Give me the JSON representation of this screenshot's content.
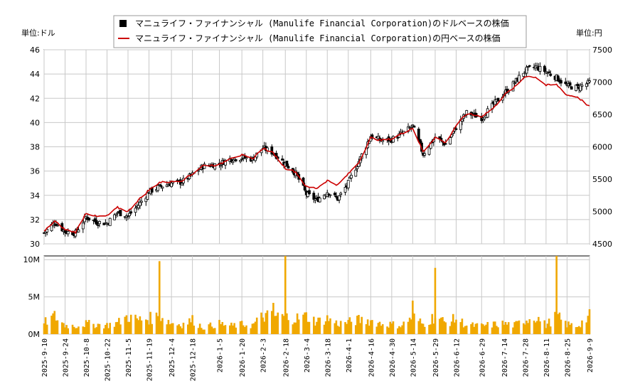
{
  "legend": {
    "usd_label": "マニュライフ・ファイナンシャル (Manulife Financial Corporation)のドルベースの株価",
    "jpy_label": "マニュライフ・ファイナンシャル (Manulife Financial Corporation)の円ベースの株価"
  },
  "units": {
    "left": "単位:ドル",
    "right": "単位:円"
  },
  "colors": {
    "candle": "#000000",
    "jpy_line": "#cc0000",
    "volume": "#f0a800",
    "grid": "#c8c8c8"
  },
  "chart_data": [
    {
      "type": "candlestick",
      "name": "price",
      "series_names": [
        "マニュライフ・ファイナンシャル (Manulife Financial Corporation)のドルベースの株価",
        "マニュライフ・ファイナンシャル (Manulife Financial Corporation)の円ベースの株価"
      ],
      "x_range": [
        "2025-09-10",
        "2026-09-09"
      ],
      "ylim_left": [
        30,
        46
      ],
      "ylim_right": [
        4500,
        7500
      ],
      "yticks_left": [
        "30",
        "32",
        "34",
        "36",
        "38",
        "40",
        "42",
        "44",
        "46"
      ],
      "yticks_right": [
        "4500",
        "5000",
        "5500",
        "6000",
        "6500",
        "7000",
        "7500"
      ],
      "x_ticks": [
        "2025-9-10",
        "2025-9-24",
        "2025-10-8",
        "2025-10-22",
        "2025-11-5",
        "2025-11-19",
        "2025-12-4",
        "2025-12-18",
        "2026-1-5",
        "2026-1-20",
        "2026-2-3",
        "2026-2-18",
        "2026-3-4",
        "2026-3-18",
        "2026-4-1",
        "2026-4-16",
        "2026-4-30",
        "2026-5-14",
        "2026-5-29",
        "2026-6-12",
        "2026-6-29",
        "2026-7-14",
        "2026-7-28",
        "2026-8-11",
        "2026-8-25",
        "2026-9-9"
      ],
      "grid": true,
      "legend_position": "top-center",
      "usd_close": [
        [
          "2025-09-10",
          30.9
        ],
        [
          "2025-09-17",
          31.8
        ],
        [
          "2025-09-24",
          31.0
        ],
        [
          "2025-10-01",
          30.9
        ],
        [
          "2025-10-08",
          32.2
        ],
        [
          "2025-10-15",
          31.8
        ],
        [
          "2025-10-22",
          31.7
        ],
        [
          "2025-10-29",
          32.6
        ],
        [
          "2025-11-05",
          32.3
        ],
        [
          "2025-11-12",
          33.2
        ],
        [
          "2025-11-19",
          34.3
        ],
        [
          "2025-11-26",
          34.7
        ],
        [
          "2025-12-04",
          35.0
        ],
        [
          "2025-12-11",
          35.1
        ],
        [
          "2025-12-18",
          35.7
        ],
        [
          "2025-12-25",
          36.4
        ],
        [
          "2026-01-05",
          36.6
        ],
        [
          "2026-01-12",
          37.0
        ],
        [
          "2026-01-20",
          37.1
        ],
        [
          "2026-01-27",
          37.0
        ],
        [
          "2026-02-03",
          37.9
        ],
        [
          "2026-02-10",
          37.5
        ],
        [
          "2026-02-18",
          36.6
        ],
        [
          "2026-02-25",
          35.8
        ],
        [
          "2026-03-04",
          34.1
        ],
        [
          "2026-03-11",
          33.6
        ],
        [
          "2026-03-18",
          34.3
        ],
        [
          "2026-03-25",
          33.7
        ],
        [
          "2026-04-01",
          35.0
        ],
        [
          "2026-04-08",
          36.8
        ],
        [
          "2026-04-16",
          38.9
        ],
        [
          "2026-04-23",
          38.5
        ],
        [
          "2026-04-30",
          38.6
        ],
        [
          "2026-05-07",
          39.1
        ],
        [
          "2026-05-14",
          39.7
        ],
        [
          "2026-05-21",
          37.4
        ],
        [
          "2026-05-29",
          38.8
        ],
        [
          "2026-06-05",
          38.2
        ],
        [
          "2026-06-12",
          39.6
        ],
        [
          "2026-06-19",
          40.8
        ],
        [
          "2026-06-29",
          40.4
        ],
        [
          "2026-07-07",
          41.5
        ],
        [
          "2026-07-14",
          42.4
        ],
        [
          "2026-07-21",
          43.3
        ],
        [
          "2026-07-28",
          44.3
        ],
        [
          "2026-08-04",
          44.6
        ],
        [
          "2026-08-11",
          44.2
        ],
        [
          "2026-08-18",
          43.7
        ],
        [
          "2026-08-25",
          43.0
        ],
        [
          "2026-09-01",
          42.9
        ],
        [
          "2026-09-09",
          43.3
        ]
      ],
      "jpy_close": [
        [
          "2025-09-10",
          4690
        ],
        [
          "2025-09-17",
          4850
        ],
        [
          "2025-09-24",
          4720
        ],
        [
          "2025-10-01",
          4680
        ],
        [
          "2025-10-08",
          4980
        ],
        [
          "2025-10-15",
          4920
        ],
        [
          "2025-10-22",
          4930
        ],
        [
          "2025-10-29",
          5060
        ],
        [
          "2025-11-05",
          5000
        ],
        [
          "2025-11-12",
          5180
        ],
        [
          "2025-11-19",
          5330
        ],
        [
          "2025-11-26",
          5450
        ],
        [
          "2025-12-04",
          5460
        ],
        [
          "2025-12-11",
          5480
        ],
        [
          "2025-12-18",
          5580
        ],
        [
          "2025-12-25",
          5710
        ],
        [
          "2026-01-05",
          5720
        ],
        [
          "2026-01-12",
          5830
        ],
        [
          "2026-01-20",
          5870
        ],
        [
          "2026-01-27",
          5810
        ],
        [
          "2026-02-03",
          5980
        ],
        [
          "2026-02-10",
          5900
        ],
        [
          "2026-02-18",
          5670
        ],
        [
          "2026-02-25",
          5610
        ],
        [
          "2026-03-04",
          5380
        ],
        [
          "2026-03-11",
          5360
        ],
        [
          "2026-03-18",
          5480
        ],
        [
          "2026-03-25",
          5410
        ],
        [
          "2026-04-01",
          5580
        ],
        [
          "2026-04-08",
          5760
        ],
        [
          "2026-04-16",
          6140
        ],
        [
          "2026-04-23",
          6100
        ],
        [
          "2026-04-30",
          6120
        ],
        [
          "2026-05-07",
          6210
        ],
        [
          "2026-05-14",
          6290
        ],
        [
          "2026-05-21",
          5920
        ],
        [
          "2026-05-29",
          6150
        ],
        [
          "2026-06-05",
          6060
        ],
        [
          "2026-06-12",
          6330
        ],
        [
          "2026-06-19",
          6510
        ],
        [
          "2026-06-29",
          6470
        ],
        [
          "2026-07-07",
          6600
        ],
        [
          "2026-07-14",
          6800
        ],
        [
          "2026-07-21",
          6920
        ],
        [
          "2026-07-28",
          7090
        ],
        [
          "2026-08-04",
          7080
        ],
        [
          "2026-08-11",
          6950
        ],
        [
          "2026-08-18",
          6960
        ],
        [
          "2026-08-25",
          6800
        ],
        [
          "2026-09-01",
          6770
        ],
        [
          "2026-09-09",
          6620
        ]
      ]
    },
    {
      "type": "bar",
      "name": "volume",
      "ylim": [
        0,
        10.5
      ],
      "yticks": [
        "0M",
        "5M",
        "10M"
      ],
      "volume_millions": [
        [
          "2025-09-10",
          1.5
        ],
        [
          "2025-09-17",
          2.6
        ],
        [
          "2025-09-24",
          1.2
        ],
        [
          "2025-10-01",
          1.1
        ],
        [
          "2025-10-08",
          1.4
        ],
        [
          "2025-10-15",
          1.3
        ],
        [
          "2025-10-22",
          1.2
        ],
        [
          "2025-10-29",
          1.5
        ],
        [
          "2025-11-05",
          2.7
        ],
        [
          "2025-11-12",
          1.9
        ],
        [
          "2025-11-19",
          2.1
        ],
        [
          "2025-11-26",
          9.8
        ],
        [
          "2025-12-04",
          1.5
        ],
        [
          "2025-12-11",
          1.3
        ],
        [
          "2025-12-18",
          1.9
        ],
        [
          "2025-12-25",
          0.9
        ],
        [
          "2026-01-05",
          1.4
        ],
        [
          "2026-01-12",
          1.1
        ],
        [
          "2026-01-20",
          1.3
        ],
        [
          "2026-01-27",
          1.2
        ],
        [
          "2026-02-03",
          3.1
        ],
        [
          "2026-02-10",
          4.2
        ],
        [
          "2026-02-18",
          12.5
        ],
        [
          "2026-02-25",
          2.1
        ],
        [
          "2026-03-04",
          3.0
        ],
        [
          "2026-03-11",
          1.7
        ],
        [
          "2026-03-18",
          2.1
        ],
        [
          "2026-03-25",
          1.4
        ],
        [
          "2026-04-01",
          1.6
        ],
        [
          "2026-04-08",
          1.9
        ],
        [
          "2026-04-16",
          1.8
        ],
        [
          "2026-04-23",
          1.4
        ],
        [
          "2026-04-30",
          1.3
        ],
        [
          "2026-05-07",
          1.2
        ],
        [
          "2026-05-14",
          4.5
        ],
        [
          "2026-05-21",
          1.3
        ],
        [
          "2026-05-29",
          8.9
        ],
        [
          "2026-06-05",
          1.5
        ],
        [
          "2026-06-12",
          2.1
        ],
        [
          "2026-06-19",
          1.2
        ],
        [
          "2026-06-29",
          1.1
        ],
        [
          "2026-07-07",
          1.3
        ],
        [
          "2026-07-14",
          1.4
        ],
        [
          "2026-07-21",
          1.2
        ],
        [
          "2026-07-28",
          1.9
        ],
        [
          "2026-08-04",
          2.9
        ],
        [
          "2026-08-11",
          1.2
        ],
        [
          "2026-08-18",
          12.5
        ],
        [
          "2026-08-25",
          1.3
        ],
        [
          "2026-09-01",
          1.1
        ],
        [
          "2026-09-09",
          3.4
        ]
      ]
    }
  ]
}
